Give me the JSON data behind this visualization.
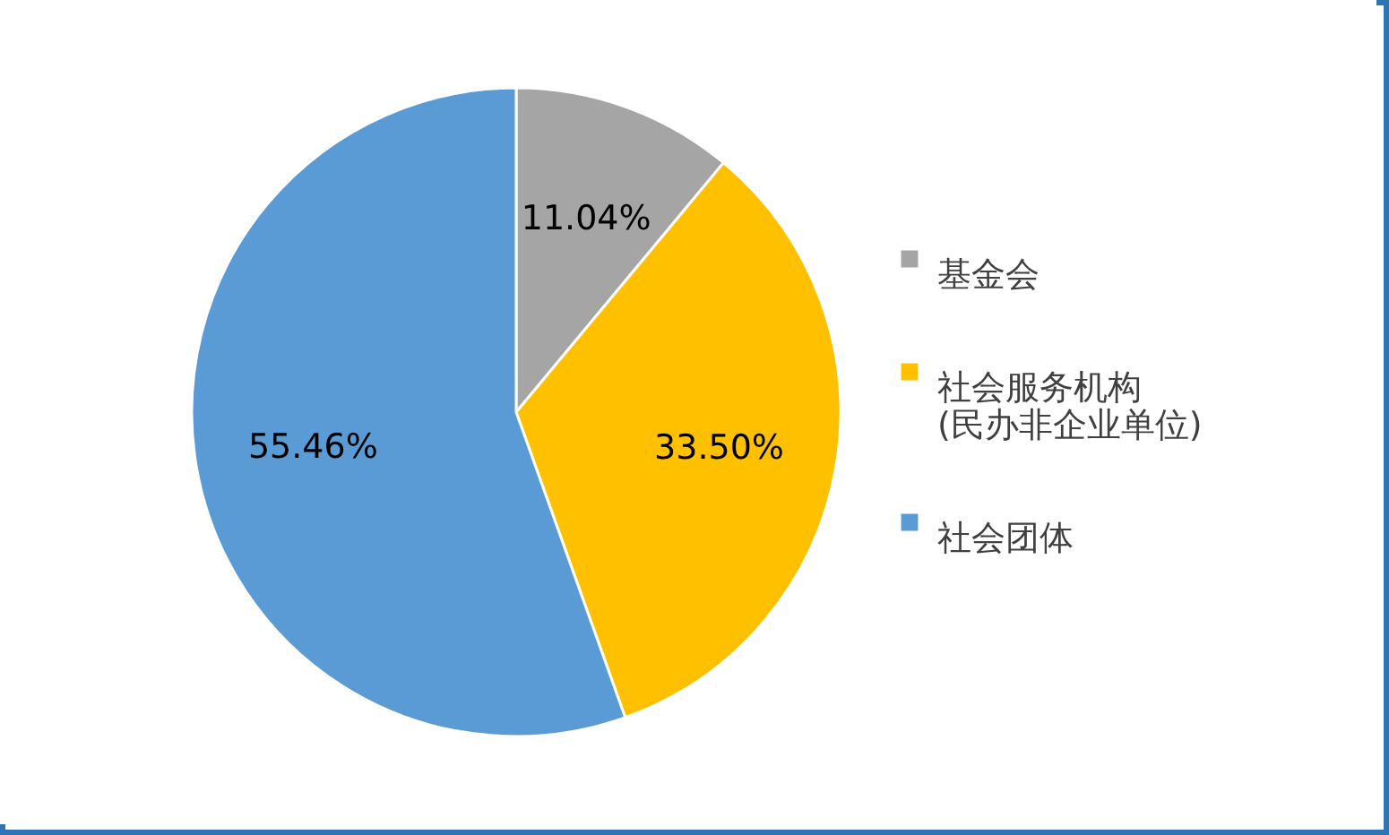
{
  "chart_data": {
    "type": "pie",
    "categories": [
      "基金会",
      "社会服务机构\n(民办非企业单位)",
      "社会团体"
    ],
    "values": [
      11.04,
      33.5,
      55.46
    ],
    "value_labels": [
      "11.04%",
      "33.50%",
      "55.46%"
    ],
    "colors": [
      "#a5a5a5",
      "#ffc000",
      "#5b9bd5"
    ],
    "legend": "right"
  }
}
